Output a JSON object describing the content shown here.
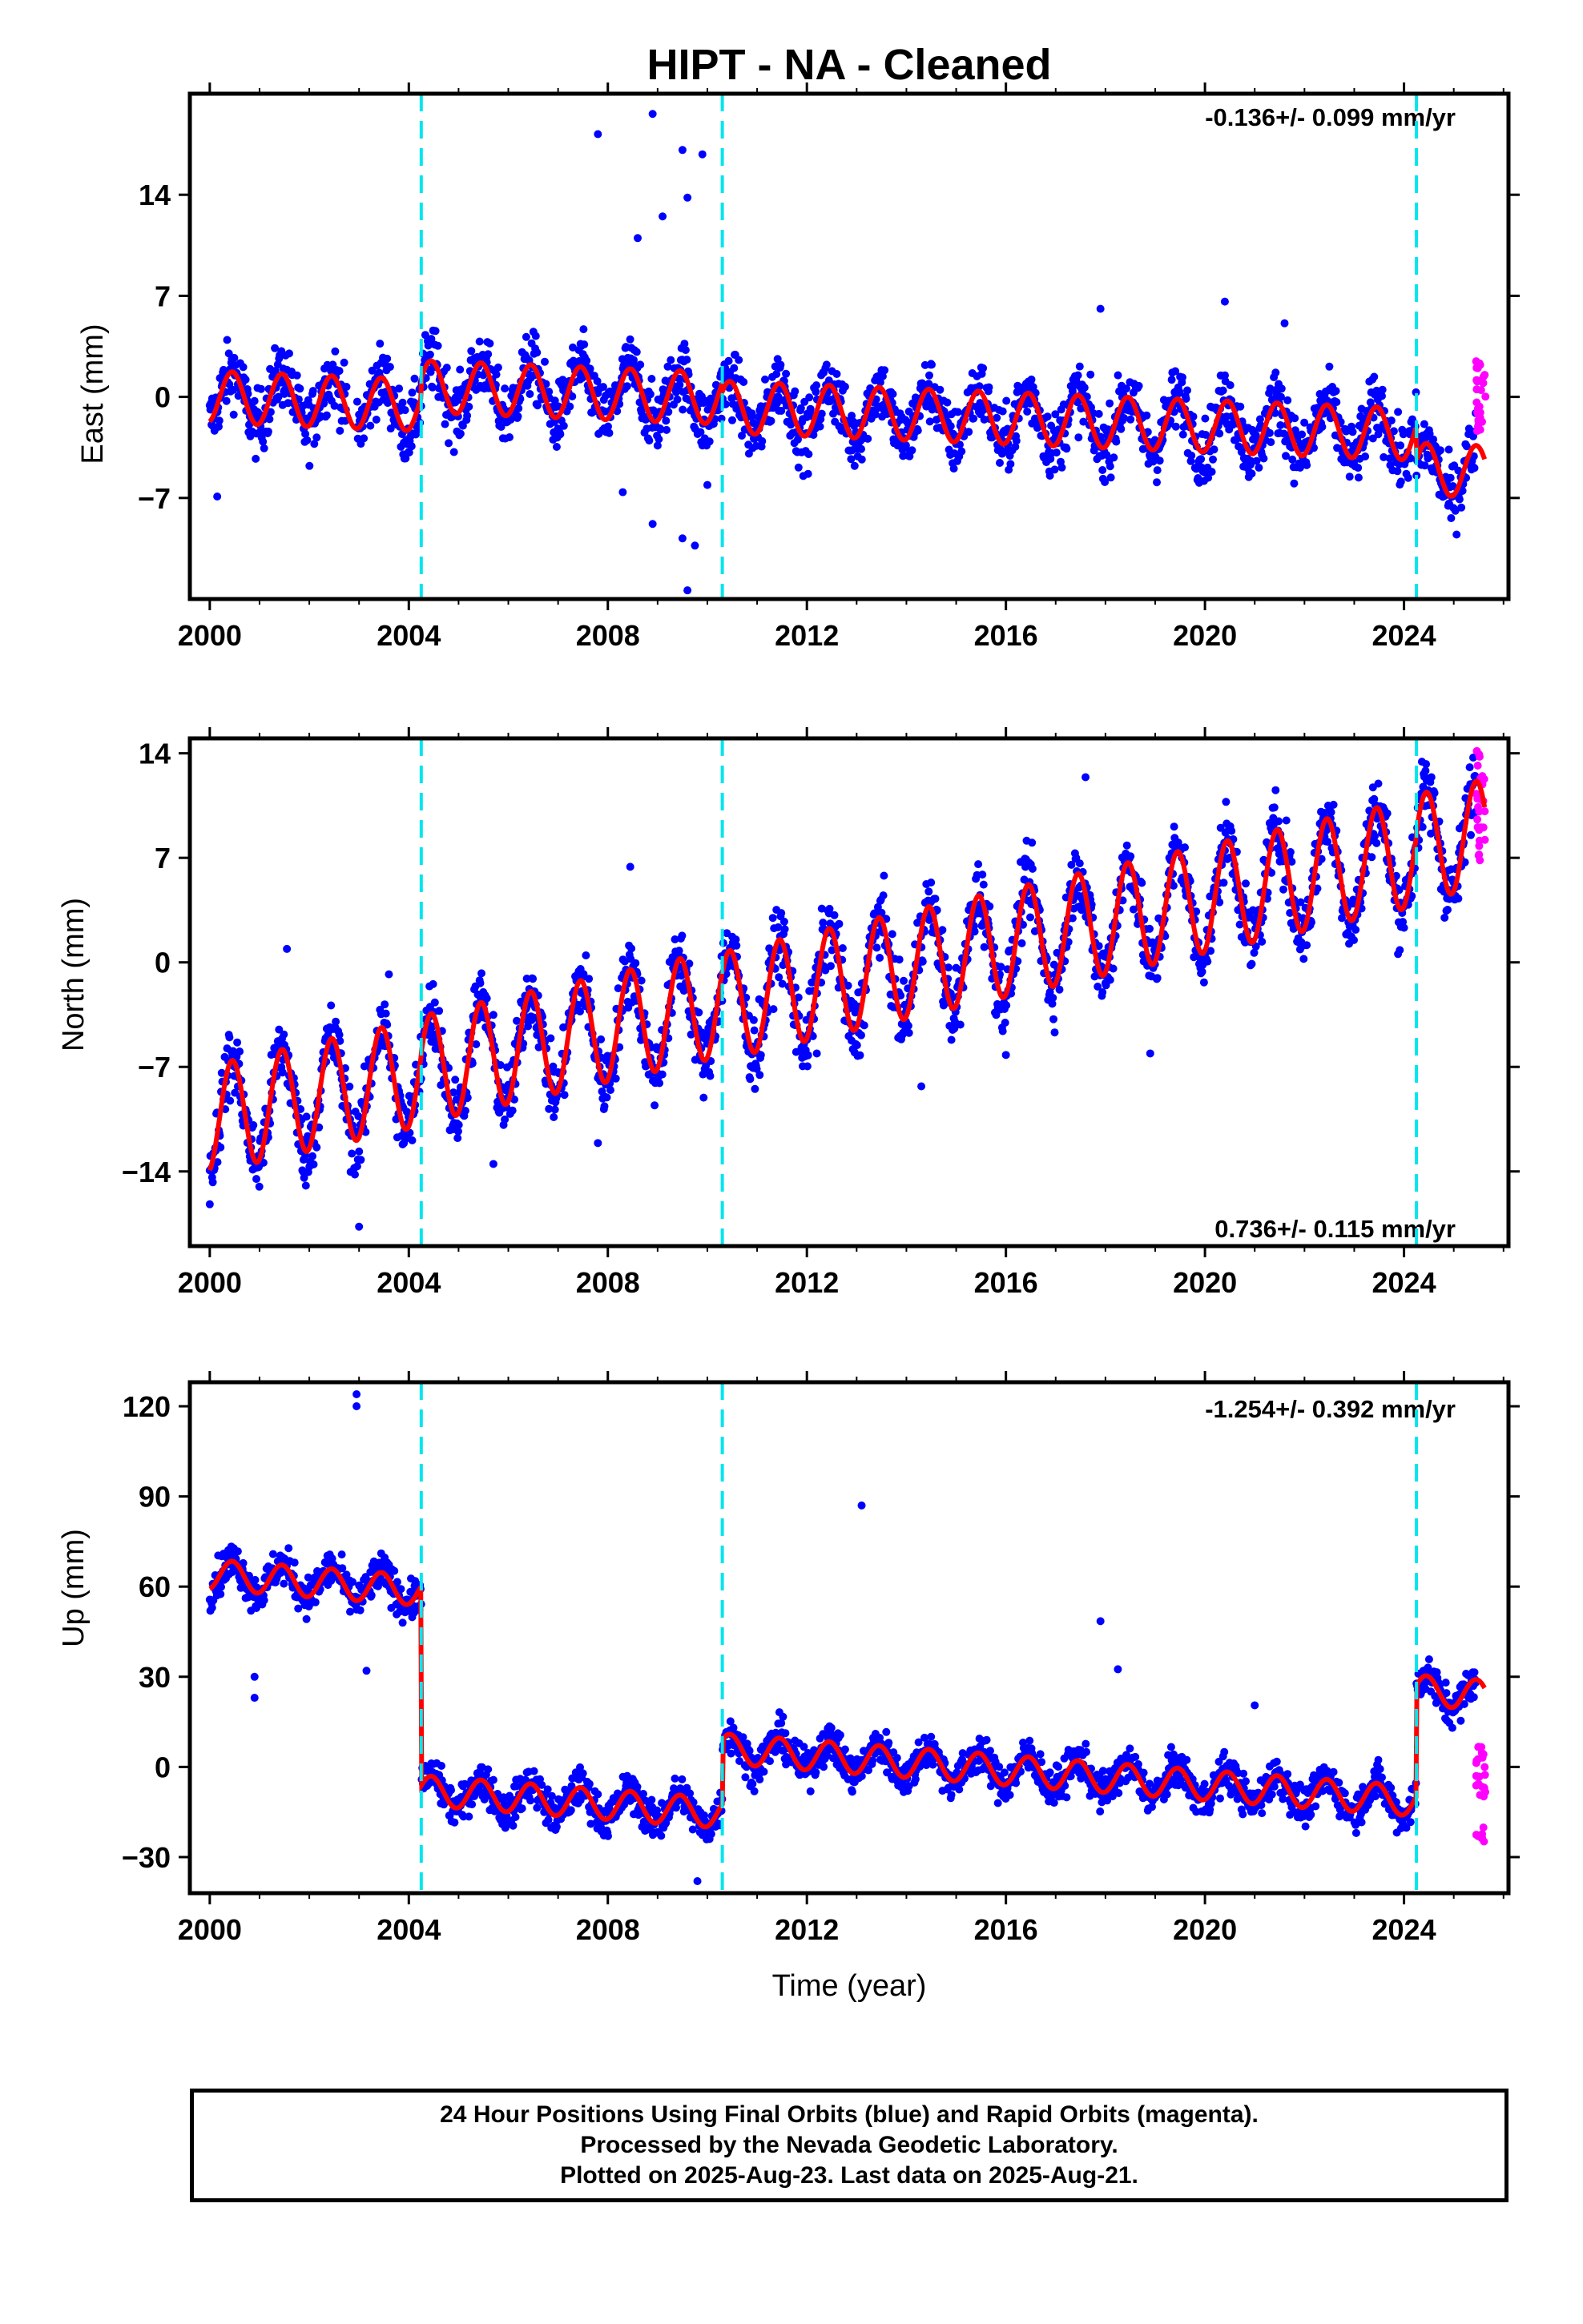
{
  "title": "HIPT  - NA - Cleaned",
  "x_axis_label": "Time (year)",
  "footer": {
    "line1": "24 Hour Positions Using Final Orbits (blue) and Rapid Orbits (magenta).",
    "line2": "Processed by the Nevada Geodetic Laboratory.",
    "line3": "Plotted on 2025-Aug-23. Last data on 2025-Aug-21."
  },
  "colors": {
    "final_orbits": "#0000ff",
    "rapid_orbits": "#ff00ff",
    "model": "#ff0000",
    "equipment_change": "#00e5ee"
  },
  "chart_data": [
    {
      "type": "scatter",
      "panel": "east",
      "ylabel": "East (mm)",
      "rate_label": "-0.136+/- 0.099 mm/yr",
      "xlim": [
        1999.6,
        2026.1
      ],
      "ylim": [
        -14,
        21
      ],
      "xticks": [
        2000,
        2004,
        2008,
        2012,
        2016,
        2020,
        2024
      ],
      "yticks": [
        -7,
        0,
        7,
        14
      ],
      "vlines": [
        2004.25,
        2010.3,
        2024.25
      ],
      "model": {
        "offset0": 0.0,
        "rate": -0.136,
        "amp": 1.8,
        "seg_offsets": [
          0.0,
          1.3,
          0.7,
          -1.7
        ]
      },
      "scatter_spread": 1.6,
      "outliers": [
        {
          "x": 2000.15,
          "y": -6.9
        },
        {
          "x": 2007.8,
          "y": 18.2
        },
        {
          "x": 2008.9,
          "y": 19.6
        },
        {
          "x": 2009.5,
          "y": 17.1
        },
        {
          "x": 2009.9,
          "y": 16.8
        },
        {
          "x": 2008.6,
          "y": 11.0
        },
        {
          "x": 2009.1,
          "y": 12.5
        },
        {
          "x": 2009.6,
          "y": 13.8
        },
        {
          "x": 2008.3,
          "y": -6.6
        },
        {
          "x": 2008.9,
          "y": -8.8
        },
        {
          "x": 2009.5,
          "y": -9.8
        },
        {
          "x": 2009.6,
          "y": -13.4
        },
        {
          "x": 2009.75,
          "y": -10.3
        },
        {
          "x": 2010.0,
          "y": -6.1
        },
        {
          "x": 2017.9,
          "y": 6.1
        },
        {
          "x": 2020.4,
          "y": 6.6
        },
        {
          "x": 2021.6,
          "y": 5.1
        },
        {
          "x": 2024.9,
          "y": -7.4
        }
      ],
      "rapid": {
        "x_from": 2025.45,
        "x_to": 2025.64,
        "y_min": -2.5,
        "y_max": 2.6
      }
    },
    {
      "type": "scatter",
      "panel": "north",
      "ylabel": "North (mm)",
      "rate_label": "0.736+/- 0.115 mm/yr",
      "xlim": [
        1999.6,
        2026.1
      ],
      "ylim": [
        -19,
        15
      ],
      "xticks": [
        2000,
        2004,
        2008,
        2012,
        2016,
        2020,
        2024
      ],
      "yticks": [
        -14,
        -7,
        0,
        7,
        14
      ],
      "vlines": [
        2004.25,
        2010.3,
        2024.25
      ],
      "model": {
        "offset0": -10.5,
        "rate": 0.736,
        "amp": 3.6,
        "seg_offsets": [
          0.0,
          0.2,
          0.0,
          0.3
        ]
      },
      "scatter_spread": 1.7,
      "outliers": [
        {
          "x": 2001.55,
          "y": 0.9
        },
        {
          "x": 2003.6,
          "y": -0.8
        },
        {
          "x": 2003.0,
          "y": -17.7
        },
        {
          "x": 2000.0,
          "y": -16.2
        },
        {
          "x": 2005.7,
          "y": -13.5
        },
        {
          "x": 2007.8,
          "y": -12.1
        },
        {
          "x": 2008.45,
          "y": 6.4
        },
        {
          "x": 2014.3,
          "y": -8.3
        },
        {
          "x": 2017.6,
          "y": 12.4
        },
        {
          "x": 2018.9,
          "y": -6.1
        },
        {
          "x": 2016.0,
          "y": -6.2
        },
        {
          "x": 2012.2,
          "y": -6.1
        }
      ],
      "rapid": {
        "x_from": 2025.45,
        "x_to": 2025.64,
        "y_min": 6.6,
        "y_max": 14.4
      }
    },
    {
      "type": "scatter",
      "panel": "up",
      "ylabel": "Up (mm)",
      "rate_label": "-1.254+/- 0.392 mm/yr",
      "xlim": [
        1999.6,
        2026.1
      ],
      "ylim": [
        -42,
        128
      ],
      "xticks": [
        2000,
        2004,
        2008,
        2012,
        2016,
        2020,
        2024
      ],
      "yticks": [
        -30,
        0,
        30,
        60,
        90,
        120
      ],
      "vlines": [
        2004.25,
        2010.3,
        2024.25
      ],
      "model": {
        "offset0": 64.0,
        "rate": -1.254,
        "amp": 5.0,
        "seg_offsets": [
          0.0,
          -66.5,
          -45.0,
          -8.0
        ]
      },
      "scatter_spread": 4.5,
      "outliers": [
        {
          "x": 2002.95,
          "y": 124.0
        },
        {
          "x": 2002.95,
          "y": 120.0
        },
        {
          "x": 2013.1,
          "y": 87.0
        },
        {
          "x": 2017.9,
          "y": 48.5
        },
        {
          "x": 2018.25,
          "y": 32.5
        },
        {
          "x": 2021.0,
          "y": 20.5
        },
        {
          "x": 2000.9,
          "y": 30.0
        },
        {
          "x": 2000.9,
          "y": 23.0
        },
        {
          "x": 2003.15,
          "y": 32.0
        },
        {
          "x": 2009.8,
          "y": -38.0
        }
      ],
      "rapid": {
        "x_from": 2025.45,
        "x_to": 2025.64,
        "y_min": -25.0,
        "y_max": 7.0
      }
    }
  ]
}
